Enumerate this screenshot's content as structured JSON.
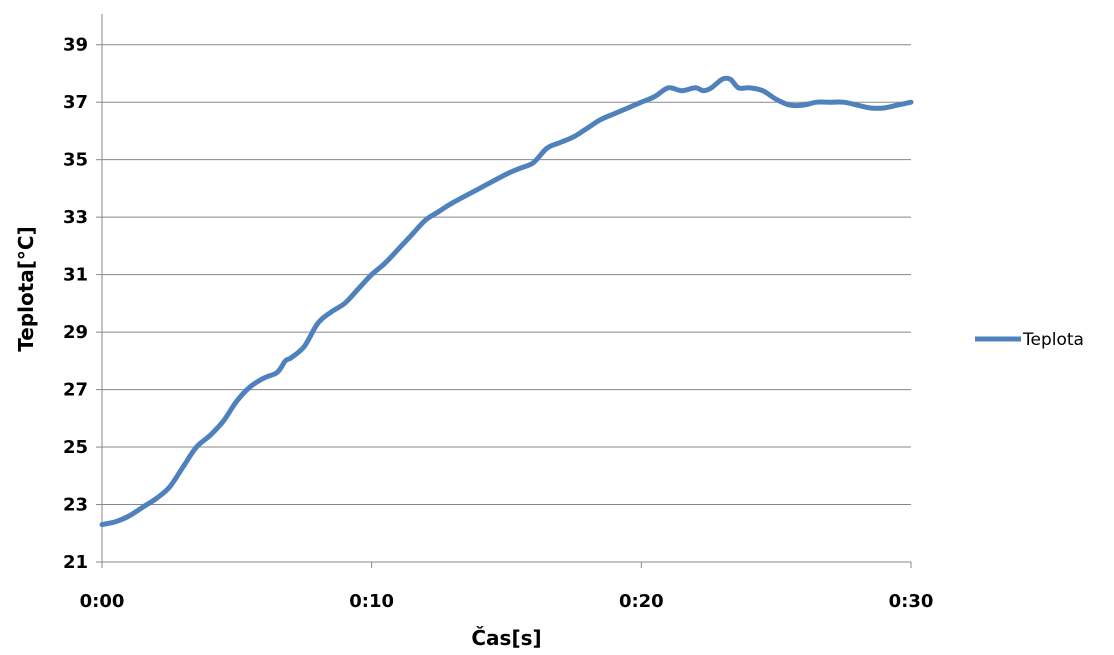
{
  "chart_data": {
    "type": "line",
    "xlabel": "Čas[s]",
    "ylabel": "Teplota[°C]",
    "xlim": [
      0,
      30
    ],
    "ylim": [
      21,
      40
    ],
    "x_ticks": [
      0,
      10,
      20,
      30
    ],
    "x_tick_labels": [
      "0:00",
      "0:10",
      "0:20",
      "0:30"
    ],
    "y_ticks": [
      21,
      23,
      25,
      27,
      29,
      31,
      33,
      35,
      37,
      39
    ],
    "y_tick_labels": [
      "21",
      "23",
      "25",
      "27",
      "29",
      "31",
      "33",
      "35",
      "37",
      "39"
    ],
    "grid": true,
    "legend": "right",
    "series": [
      {
        "name": "Teplota",
        "color": "#4f81bd",
        "x": [
          0,
          0.5,
          1,
          1.5,
          2,
          2.5,
          3,
          3.5,
          4,
          4.5,
          5,
          5.5,
          6,
          6.5,
          6.8,
          7,
          7.5,
          8,
          8.5,
          9,
          9.5,
          10,
          10.5,
          11,
          11.5,
          12,
          12.5,
          13,
          14,
          15,
          15.5,
          16,
          16.5,
          17,
          17.5,
          18,
          18.5,
          19,
          19.5,
          20,
          20.5,
          21,
          21.5,
          22,
          22.3,
          22.6,
          23,
          23.3,
          23.6,
          24,
          24.5,
          25,
          25.5,
          26,
          26.5,
          27,
          27.5,
          28,
          28.5,
          29,
          29.5,
          30
        ],
        "y": [
          22.3,
          22.4,
          22.6,
          22.9,
          23.2,
          23.6,
          24.3,
          25.0,
          25.4,
          25.9,
          26.6,
          27.1,
          27.4,
          27.6,
          28.0,
          28.1,
          28.5,
          29.3,
          29.7,
          30.0,
          30.5,
          31.0,
          31.4,
          31.9,
          32.4,
          32.9,
          33.2,
          33.5,
          34.0,
          34.5,
          34.7,
          34.9,
          35.4,
          35.6,
          35.8,
          36.1,
          36.4,
          36.6,
          36.8,
          37.0,
          37.2,
          37.5,
          37.4,
          37.5,
          37.4,
          37.5,
          37.8,
          37.8,
          37.5,
          37.5,
          37.4,
          37.1,
          36.9,
          36.9,
          37.0,
          37.0,
          37.0,
          36.9,
          36.8,
          36.8,
          36.9,
          37.0
        ]
      }
    ]
  }
}
